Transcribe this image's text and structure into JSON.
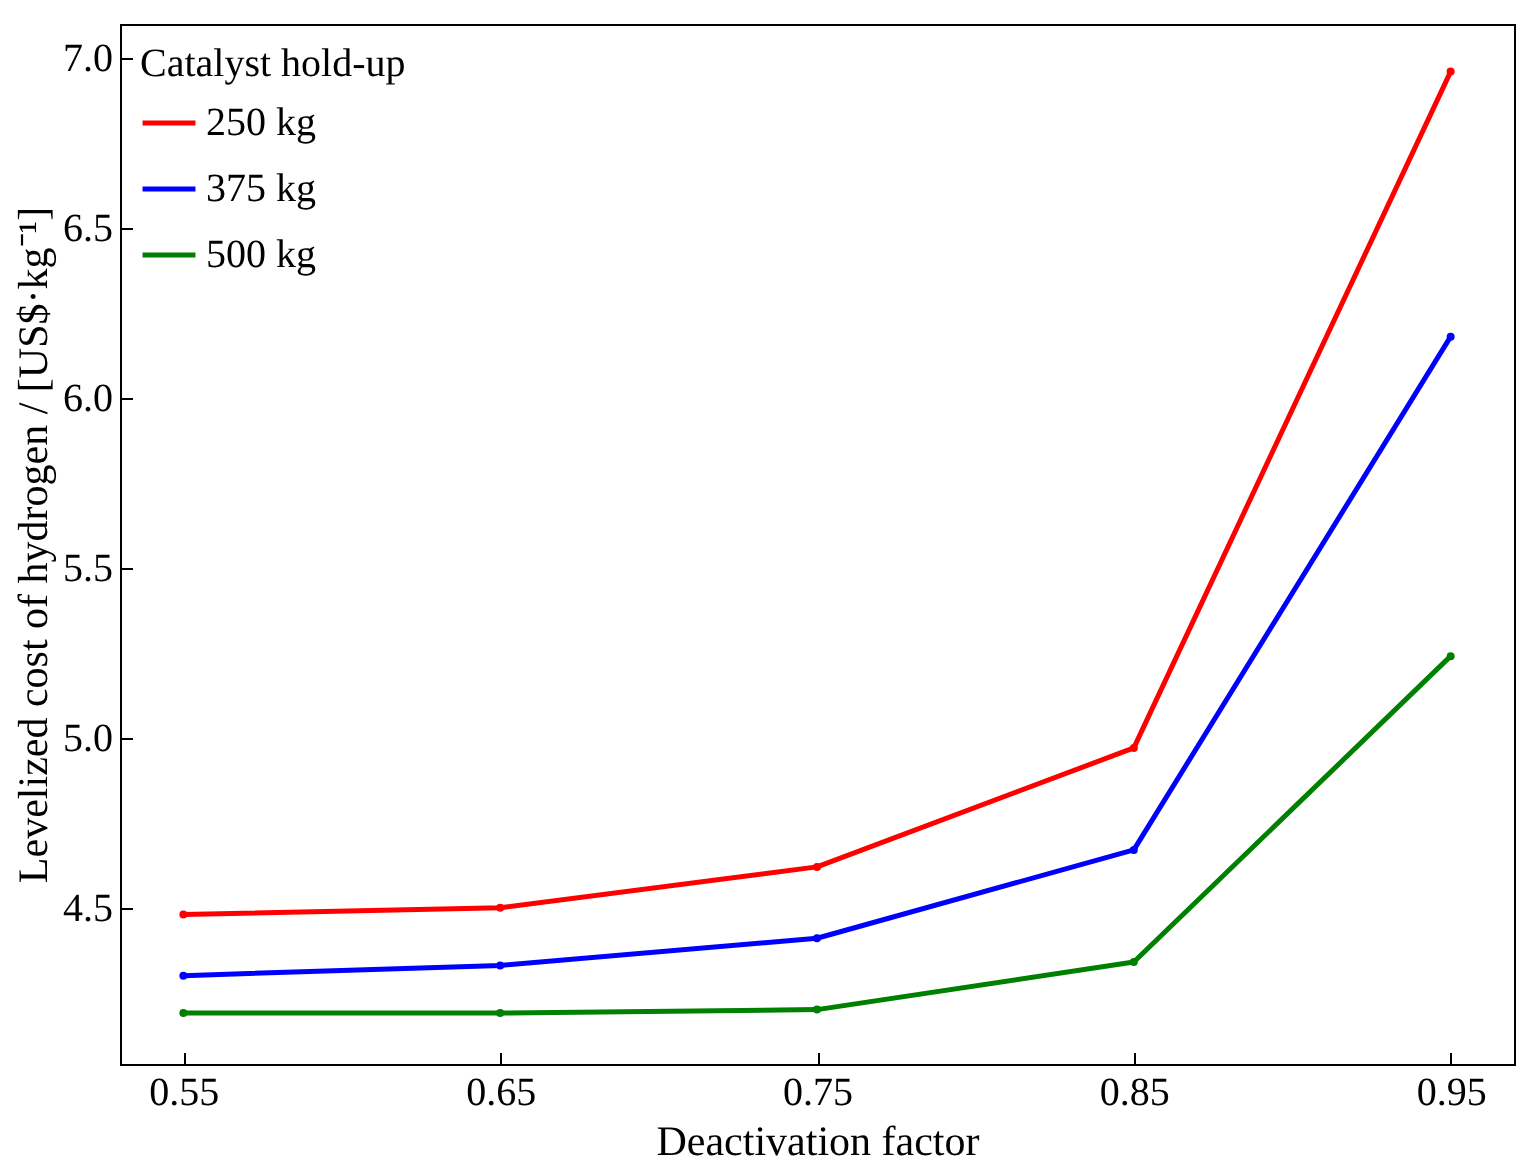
{
  "chart_data": {
    "type": "line",
    "xlabel": "Deactivation factor",
    "ylabel": "Levelized cost of hydrogen / [US$·kg⁻¹]",
    "legend_title": "Catalyst hold-up",
    "x": [
      0.55,
      0.65,
      0.75,
      0.85,
      0.95
    ],
    "series": [
      {
        "name": "250 kg",
        "color": "#ff0000",
        "values": [
          4.48,
          4.5,
          4.62,
          4.97,
          6.96
        ]
      },
      {
        "name": "375 kg",
        "color": "#0000ff",
        "values": [
          4.3,
          4.33,
          4.41,
          4.67,
          6.18
        ]
      },
      {
        "name": "500 kg",
        "color": "#008000",
        "values": [
          4.19,
          4.19,
          4.2,
          4.34,
          5.24
        ]
      }
    ],
    "xlim": [
      0.53,
      0.97
    ],
    "xticks": [
      0.55,
      0.65,
      0.75,
      0.85,
      0.95
    ],
    "ylim": [
      4.04,
      7.1
    ],
    "yticks": [
      4.5,
      {
        "value": 5,
        "label": "5.0"
      },
      5.5,
      {
        "value": 6,
        "label": "6.0"
      },
      6.5,
      {
        "value": 7,
        "label": "7.0"
      }
    ],
    "grid": false,
    "legend": "top left",
    "marker": "circle",
    "line_style": "solid"
  }
}
